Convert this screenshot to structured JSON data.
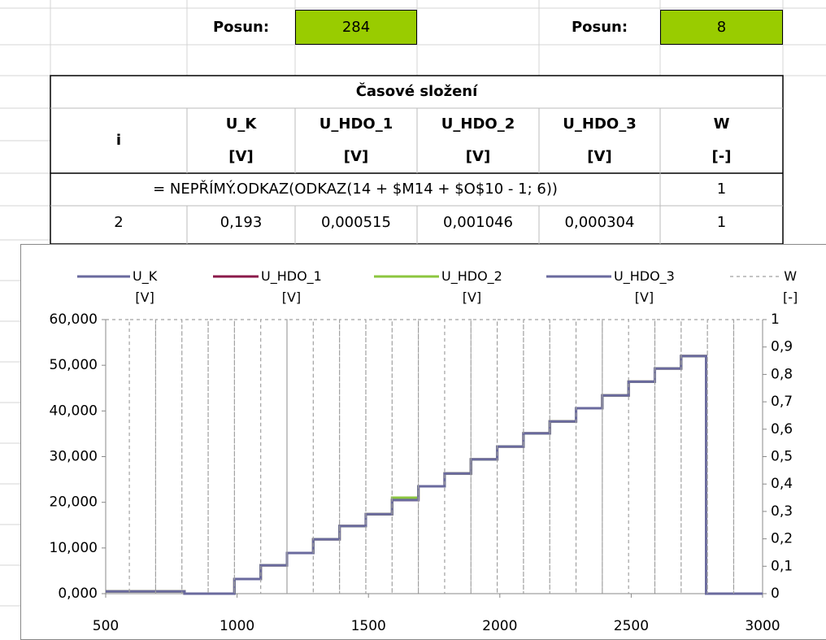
{
  "posun": [
    {
      "label": "Posun:",
      "value": 284
    },
    {
      "label": "Posun:",
      "value": 8
    }
  ],
  "table": {
    "title": "Časové složení",
    "headers": [
      {
        "name": "i"
      },
      {
        "name": "U_K",
        "unit": "[V]"
      },
      {
        "name": "U_HDO_1",
        "unit": "[V]"
      },
      {
        "name": "U_HDO_2",
        "unit": "[V]"
      },
      {
        "name": "U_HDO_3",
        "unit": "[V]"
      },
      {
        "name": "W",
        "unit": "[-]"
      }
    ],
    "formula": "= NEPŘÍMÝ.ODKAZ(ODKAZ(14 + $M14 + $O$10 - 1; 6))",
    "formula_w": 1,
    "rows": [
      [
        2,
        "0,193",
        "0,000515",
        "0,001046",
        "0,000304",
        1
      ]
    ]
  },
  "chart_data": {
    "type": "line",
    "series": [
      {
        "name": "U_K\n[V]",
        "color": "#6a6a9e",
        "x": [
          500,
          800,
          800,
          990,
          990,
          1090,
          1090,
          1190,
          1190,
          1290,
          1290,
          1390,
          1390,
          1490,
          1490,
          1590,
          1590,
          1690,
          1690,
          1790,
          1790,
          1890,
          1890,
          1990,
          1990,
          2090,
          2090,
          2190,
          2190,
          2290,
          2290,
          2390,
          2390,
          2490,
          2490,
          2590,
          2590,
          2690,
          2690,
          2785,
          2785,
          3000
        ],
        "values": [
          500,
          500,
          0,
          0,
          3200,
          3200,
          6200,
          6200,
          8900,
          8900,
          11900,
          11900,
          14800,
          14800,
          17400,
          17400,
          20500,
          20500,
          23500,
          23500,
          26300,
          26300,
          29400,
          29400,
          32200,
          32200,
          35100,
          35100,
          37700,
          37700,
          40600,
          40600,
          43400,
          43400,
          46400,
          46400,
          49300,
          49300,
          52000,
          52000,
          0,
          0
        ]
      },
      {
        "name": "U_HDO_1\n[V]",
        "color": "#8b1a4a",
        "x": [
          500,
          800,
          800,
          990,
          990,
          1090,
          1090,
          1190,
          1190,
          1290,
          1290,
          1390,
          1390,
          1490,
          1490,
          1590,
          1590,
          1690,
          1690,
          1790,
          1790,
          1890,
          1890,
          1990,
          1990,
          2090,
          2090,
          2190,
          2190,
          2290,
          2290,
          2390,
          2390,
          2490,
          2490,
          2590,
          2590,
          2690,
          2690,
          2785,
          2785,
          3000
        ],
        "values": [
          500,
          500,
          0,
          0,
          3200,
          3200,
          6200,
          6200,
          8900,
          8900,
          11900,
          11900,
          14800,
          14800,
          17400,
          17400,
          20500,
          20500,
          23500,
          23500,
          26300,
          26300,
          29400,
          29400,
          32200,
          32200,
          35100,
          35100,
          37700,
          37700,
          40600,
          40600,
          43400,
          43400,
          46400,
          46400,
          49300,
          49300,
          52000,
          52000,
          0,
          0
        ]
      },
      {
        "name": "U_HDO_2\n[V]",
        "color": "#8cc63f",
        "x": [
          500,
          800,
          800,
          990,
          990,
          1090,
          1090,
          1190,
          1190,
          1290,
          1290,
          1390,
          1390,
          1490,
          1490,
          1590,
          1590,
          1690,
          1690,
          1790,
          1790,
          1890,
          1890,
          1990,
          1990,
          2090,
          2090,
          2190,
          2190,
          2290,
          2290,
          2390,
          2390,
          2490,
          2490,
          2590,
          2590,
          2690,
          2690,
          2785,
          2785,
          3000
        ],
        "values": [
          500,
          500,
          0,
          0,
          3200,
          3200,
          6200,
          6200,
          8900,
          8900,
          11900,
          11900,
          14800,
          14800,
          17400,
          17400,
          21000,
          21000,
          23500,
          23500,
          26300,
          26300,
          29400,
          29400,
          32200,
          32200,
          35100,
          35100,
          37700,
          37700,
          40600,
          40600,
          43400,
          43400,
          46400,
          46400,
          49300,
          49300,
          52000,
          52000,
          0,
          0
        ]
      },
      {
        "name": "U_HDO_3\n[V]",
        "color": "#6a6a9e",
        "x": [
          500,
          800,
          800,
          990,
          990,
          1090,
          1090,
          1190,
          1190,
          1290,
          1290,
          1390,
          1390,
          1490,
          1490,
          1590,
          1590,
          1690,
          1690,
          1790,
          1790,
          1890,
          1890,
          1990,
          1990,
          2090,
          2090,
          2190,
          2190,
          2290,
          2290,
          2390,
          2390,
          2490,
          2490,
          2590,
          2590,
          2690,
          2690,
          2785,
          2785,
          3000
        ],
        "values": [
          500,
          500,
          0,
          0,
          3200,
          3200,
          6200,
          6200,
          8900,
          8900,
          11900,
          11900,
          14800,
          14800,
          17400,
          17400,
          20500,
          20500,
          23500,
          23500,
          26300,
          26300,
          29400,
          29400,
          32200,
          32200,
          35100,
          35100,
          37700,
          37700,
          40600,
          40600,
          43400,
          43400,
          46400,
          46400,
          49300,
          49300,
          52000,
          52000,
          0,
          0
        ]
      },
      {
        "name": "W\n[-]",
        "color": "#a0a0a0",
        "dashed": true,
        "axis": "y2",
        "x": [
          500,
          590,
          590,
          590,
          690,
          690,
          690,
          790,
          790,
          790,
          890,
          890,
          890,
          990,
          990,
          990,
          1090,
          1090,
          1090,
          1190,
          1190,
          1190,
          1290,
          1290,
          1290,
          1390,
          1390,
          1390,
          1490,
          1490,
          1490,
          1590,
          1590,
          1590,
          1690,
          1690,
          1690,
          1790,
          1790,
          1790,
          1890,
          1890,
          1890,
          1990,
          1990,
          1990,
          2090,
          2090,
          2090,
          2190,
          2190,
          2190,
          2290,
          2290,
          2290,
          2390,
          2390,
          2390,
          2490,
          2490,
          2490,
          2590,
          2590,
          2590,
          2690,
          2690,
          2690,
          2790,
          2790,
          2790,
          2890,
          2890,
          2890,
          3000
        ],
        "values": [
          1,
          1,
          0,
          1,
          1,
          0,
          1,
          1,
          0,
          1,
          1,
          0,
          1,
          1,
          0,
          1,
          1,
          0,
          1,
          1,
          0,
          1,
          1,
          0,
          1,
          1,
          0,
          1,
          1,
          0,
          1,
          1,
          0,
          1,
          1,
          0,
          1,
          1,
          0,
          1,
          1,
          0,
          1,
          1,
          0,
          1,
          1,
          0,
          1,
          1,
          0,
          1,
          1,
          0,
          1,
          1,
          0,
          1,
          1,
          0,
          1,
          1,
          0,
          1,
          1,
          0,
          1,
          1,
          0,
          1,
          1,
          0,
          1,
          1
        ]
      }
    ],
    "xlim": [
      500,
      3000
    ],
    "xticks": [
      500,
      1000,
      1500,
      2000,
      2500,
      3000
    ],
    "ylim": [
      0,
      60000
    ],
    "yticks": [
      {
        "value": 0,
        "label": "0,000"
      },
      {
        "value": 10000,
        "label": "10,000"
      },
      {
        "value": 20000,
        "label": "20,000"
      },
      {
        "value": 30000,
        "label": "30,000"
      },
      {
        "value": 40000,
        "label": "40,000"
      },
      {
        "value": 50000,
        "label": "50,000"
      },
      {
        "value": 60000,
        "label": "60,000"
      }
    ],
    "y2lim": [
      0,
      1
    ],
    "y2ticks": [
      0,
      {
        "value": 0.1,
        "label": "0,1"
      },
      {
        "value": 0.2,
        "label": "0,2"
      },
      {
        "value": 0.3,
        "label": "0,3"
      },
      {
        "value": 0.4,
        "label": "0,4"
      },
      {
        "value": 0.5,
        "label": "0,5"
      },
      {
        "value": 0.6,
        "label": "0,6"
      },
      {
        "value": 0.7,
        "label": "0,7"
      },
      {
        "value": 0.8,
        "label": "0,8"
      },
      {
        "value": 0.9,
        "label": "0,9"
      },
      1
    ],
    "grid": false,
    "legend": "top"
  }
}
